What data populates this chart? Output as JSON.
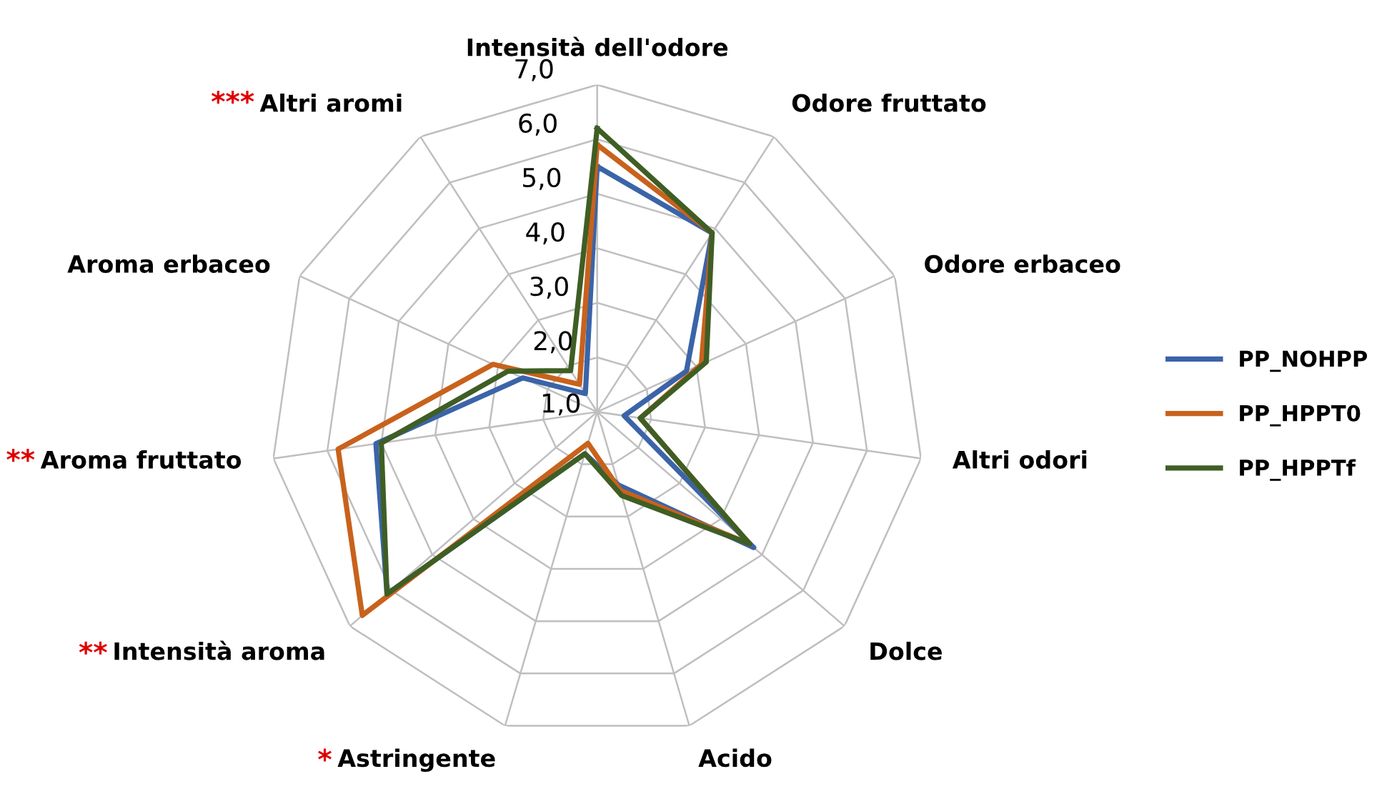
{
  "chart_data": {
    "type": "radar",
    "categories": [
      "Intensità dell'odore",
      "Odore fruttato",
      "Odore erbaceo",
      "Altri odori",
      "Dolce",
      "Acido",
      "Astringente",
      "Intensità aroma",
      "Aroma fruttato",
      "Aroma erbaceo",
      "Altri aromi"
    ],
    "annotations": [
      {
        "text": "*",
        "x": "Astringente"
      },
      {
        "text": "**",
        "x": "Intensità aroma"
      },
      {
        "text": "**",
        "x": "Aroma fruttato"
      },
      {
        "text": "***",
        "x": "Altri aromi"
      }
    ],
    "series": [
      {
        "name": "PP_NOHPP",
        "color": "#3b64a8",
        "values": [
          5.5,
          4.9,
          2.8,
          1.5,
          4.8,
          2.4,
          1.8,
          6.1,
          5.1,
          2.5,
          1.4
        ]
      },
      {
        "name": "PP_HPPT0",
        "color": "#c8621c",
        "values": [
          5.9,
          4.9,
          3.1,
          1.8,
          4.7,
          2.5,
          1.6,
          6.7,
          5.8,
          3.1,
          1.6
        ]
      },
      {
        "name": "PP_HPPTf",
        "color": "#3f5e24",
        "values": [
          6.2,
          4.9,
          3.2,
          1.8,
          4.7,
          2.6,
          1.8,
          6.1,
          5.0,
          2.8,
          1.9
        ]
      }
    ],
    "ylim": [
      1,
      7
    ],
    "yticks": [
      {
        "value": 1,
        "label": "1,0"
      },
      {
        "value": 2,
        "label": "2,0"
      },
      {
        "value": 3,
        "label": "3,0"
      },
      {
        "value": 4,
        "label": "4,0"
      },
      {
        "value": 5,
        "label": "5,0"
      },
      {
        "value": 6,
        "label": "6,0"
      },
      {
        "value": 7,
        "label": "7,0"
      }
    ],
    "grid": true,
    "legend": "right",
    "marker": "none",
    "line_style": "solid"
  }
}
